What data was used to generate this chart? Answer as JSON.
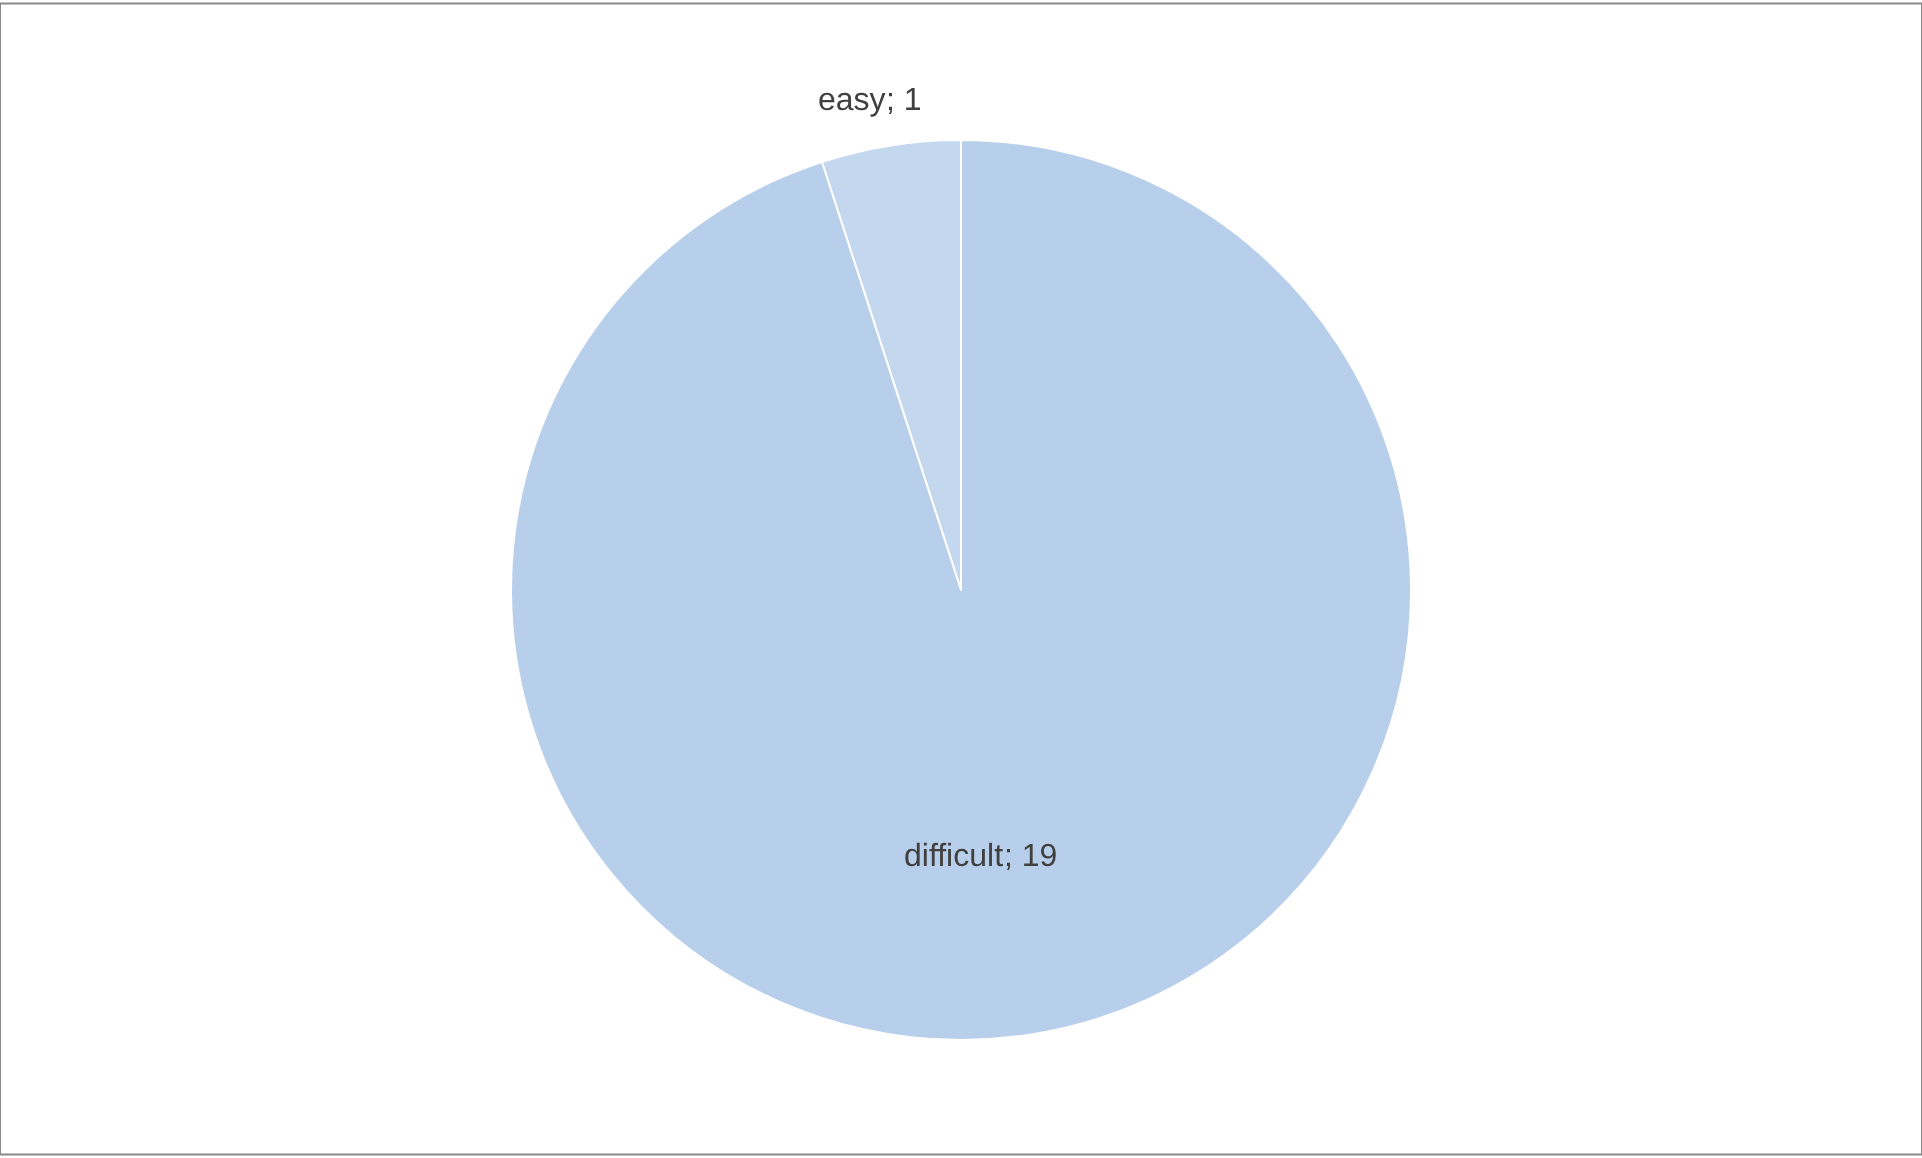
{
  "chart_data": {
    "type": "pie",
    "categories": [
      "easy",
      "difficult"
    ],
    "values": [
      1,
      19
    ],
    "colors": [
      "#c3d7ee",
      "#b7cfea"
    ],
    "value_labels": [
      "; 1",
      "; 19"
    ]
  }
}
